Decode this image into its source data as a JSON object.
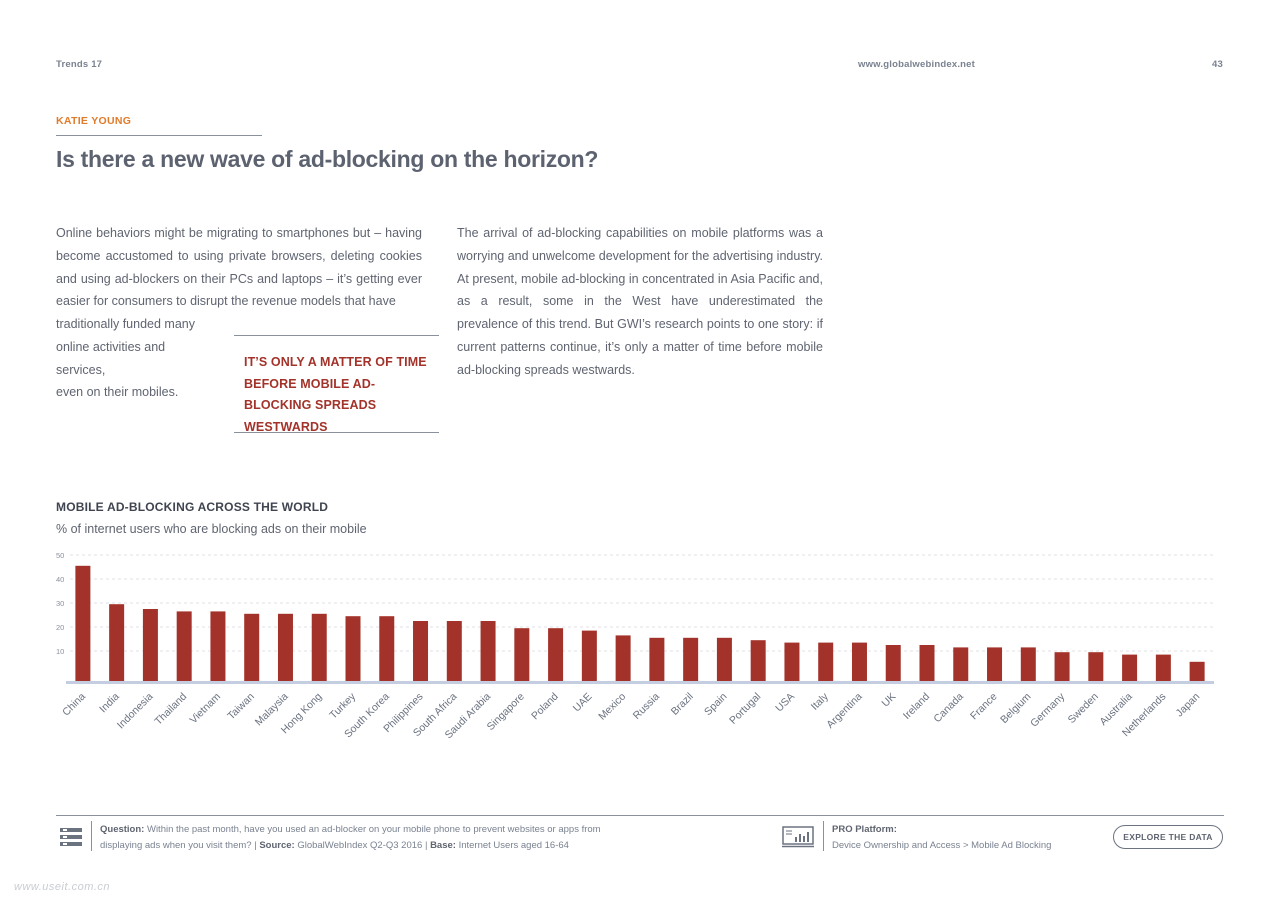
{
  "header": {
    "left": "Trends 17",
    "url": "www.globalwebindex.net",
    "page_number": "43"
  },
  "article": {
    "author": "KATIE YOUNG",
    "title": "Is there a new wave of ad-blocking on the horizon?",
    "col1_main": "Online behaviors might be migrating to smartphones but – having become accustomed to using private browsers, deleting cookies and using ad-blockers on their PCs and laptops – it’s getting ever easier for consumers to disrupt the revenue models that have",
    "col1_line1": "traditionally funded many",
    "col1_line2": "online activities and services,",
    "col1_line3": "even on their mobiles.",
    "col2": "The arrival of ad-blocking capabilities on mobile platforms was a worrying and unwelcome development for the advertising industry. At present, mobile ad-blocking in concentrated in Asia Pacific and, as a result, some in the West have underestimated the prevalence of this trend. But GWI’s research points to one story: if current patterns continue, it’s only a matter of time before mobile ad-blocking spreads westwards.",
    "pull_quote": "IT’S ONLY A MATTER OF TIME BEFORE MOBILE AD-BLOCKING SPREADS WESTWARDS"
  },
  "chart_data": {
    "type": "bar",
    "title": "MOBILE AD-BLOCKING ACROSS THE WORLD",
    "subtitle": "% of internet users who are blocking ads on their mobile",
    "categories": [
      "China",
      "India",
      "Indonesia",
      "Thailand",
      "Vietnam",
      "Taiwan",
      "Malaysia",
      "Hong Kong",
      "Turkey",
      "South Korea",
      "Philippines",
      "South Africa",
      "Saudi Arabia",
      "Singapore",
      "Poland",
      "UAE",
      "Mexico",
      "Russia",
      "Brazil",
      "Spain",
      "Portugal",
      "USA",
      "Italy",
      "Argentina",
      "UK",
      "Ireland",
      "Canada",
      "France",
      "Belgium",
      "Germany",
      "Sweden",
      "Australia",
      "Netherlands",
      "Japan"
    ],
    "values": [
      48,
      32,
      30,
      29,
      29,
      28,
      28,
      28,
      27,
      27,
      25,
      25,
      25,
      22,
      22,
      21,
      19,
      18,
      18,
      18,
      17,
      16,
      16,
      16,
      15,
      15,
      14,
      14,
      14,
      12,
      12,
      11,
      11,
      8
    ],
    "yticks": [
      10,
      20,
      30,
      40,
      50
    ],
    "ylim": [
      0,
      50
    ],
    "grid": true,
    "bar_color": "#a3332a",
    "axis_color": "#c5cde0"
  },
  "footer": {
    "question_label": "Question:",
    "question_text": "Within the past month, have you used an ad-blocker on your mobile phone to prevent websites or apps from",
    "question_text2": "displaying ads when you visit them?",
    "source_label": "Source:",
    "source_text": "GlobalWebIndex Q2-Q3 2016",
    "base_label": "Base:",
    "base_text": "Internet Users aged 16-64",
    "separator": "|",
    "pro_label": "PRO Platform:",
    "pro_path": "Device Ownership and Access > Mobile Ad Blocking",
    "explore_button": "EXPLORE THE DATA"
  },
  "watermark": "www.useit.com.cn"
}
